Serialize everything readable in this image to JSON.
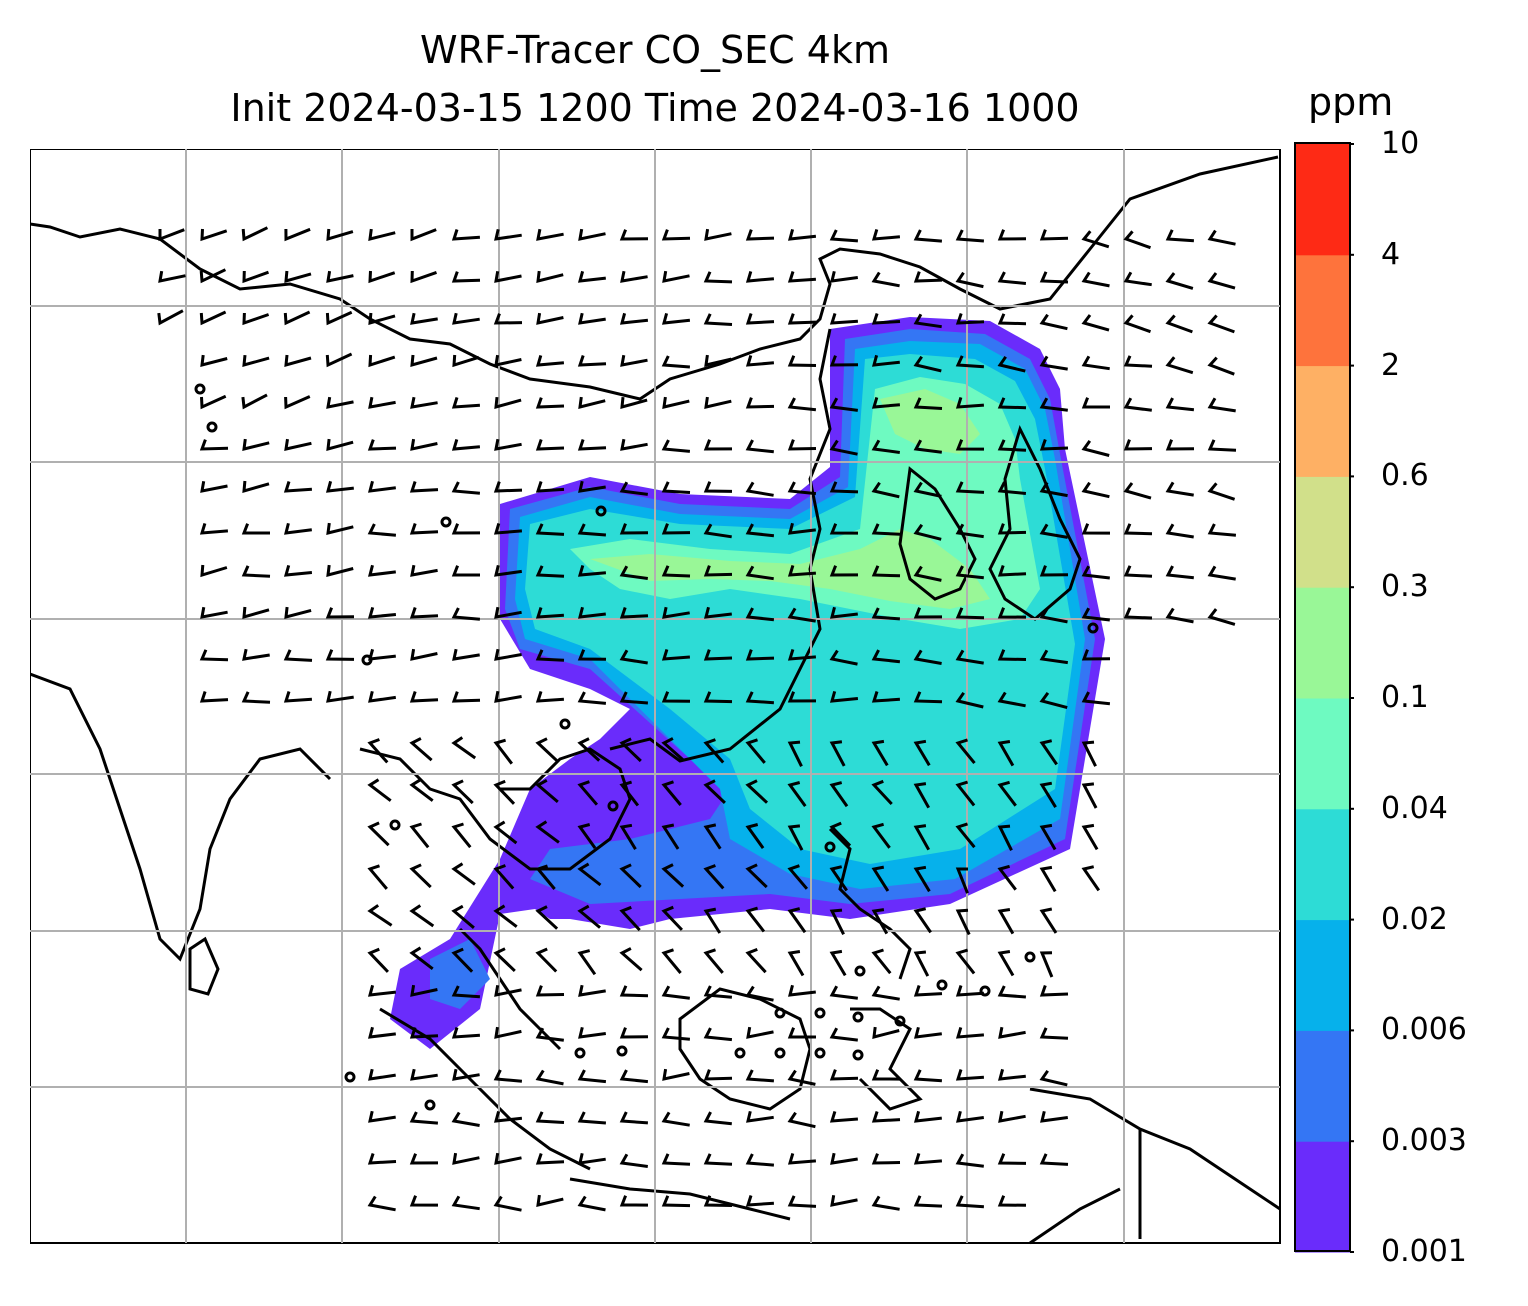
{
  "title_line1": "WRF-Tracer CO_SEC 4km",
  "title_line2": "Init 2024-03-15 1200 Time 2024-03-16 1000",
  "colorbar": {
    "unit": "ppm",
    "levels": [
      "0.001",
      "0.003",
      "0.006",
      "0.02",
      "0.04",
      "0.1",
      "0.3",
      "0.6",
      "2",
      "4",
      "10"
    ],
    "colors": [
      "#6a2cfb",
      "#3476f4",
      "#06b1eb",
      "#2ddcd6",
      "#6efac1",
      "#99f797",
      "#d1e08a",
      "#feb064",
      "#fe733c",
      "#fe2a15"
    ]
  },
  "map": {
    "background": "#ffffff",
    "gridlines": "on",
    "coastline_color": "#000000",
    "overlay": "wind barbs"
  }
}
